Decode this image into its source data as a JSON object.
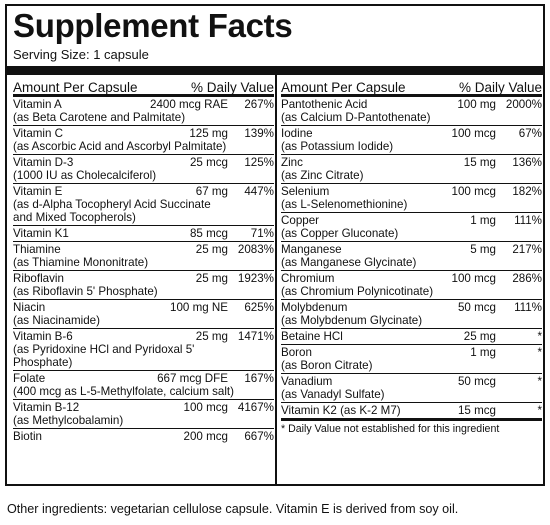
{
  "title": "Supplement Facts",
  "serving_size": "Serving Size: 1 capsule",
  "headers": {
    "amount": "Amount Per Capsule",
    "dv": "% Daily Value"
  },
  "left": [
    {
      "name": "Vitamin A",
      "amount": "2400 mcg RAE",
      "dv": "267%",
      "sub": [
        "(as Beta Carotene and Palmitate)"
      ]
    },
    {
      "name": "Vitamin C",
      "amount": "125 mg",
      "dv": "139%",
      "sub": [
        "(as Ascorbic Acid and Ascorbyl Palmitate)"
      ]
    },
    {
      "name": "Vitamin D-3",
      "amount": "25 mcg",
      "dv": "125%",
      "sub": [
        "(1000 IU as Cholecalciferol)"
      ]
    },
    {
      "name": "Vitamin E",
      "amount": "67 mg",
      "dv": "447%",
      "sub": [
        "(as d-Alpha Tocopheryl Acid Succinate",
        "and Mixed Tocopherols)"
      ]
    },
    {
      "name": "Vitamin K1",
      "amount": "85 mcg",
      "dv": "71%",
      "sub": []
    },
    {
      "name": "Thiamine",
      "amount": "25 mg",
      "dv": "2083%",
      "sub": [
        "(as Thiamine Mononitrate)"
      ]
    },
    {
      "name": "Riboflavin",
      "amount": "25 mg",
      "dv": "1923%",
      "sub": [
        "(as Riboflavin 5' Phosphate)"
      ]
    },
    {
      "name": "Niacin",
      "amount": "100 mg NE",
      "dv": "625%",
      "sub": [
        "(as Niacinamide)"
      ]
    },
    {
      "name": "Vitamin B-6",
      "amount": "25 mg",
      "dv": "1471%",
      "sub": [
        "(as Pyridoxine HCl and Pyridoxal 5'",
        "Phosphate)"
      ]
    },
    {
      "name": "Folate",
      "amount": "667 mcg DFE",
      "dv": "167%",
      "sub": [
        "(400 mcg as L-5-Methylfolate, calcium salt)"
      ]
    },
    {
      "name": "Vitamin B-12",
      "amount": "100 mcg",
      "dv": "4167%",
      "sub": [
        "(as Methylcobalamin)"
      ]
    },
    {
      "name": "Biotin",
      "amount": "200 mcg",
      "dv": "667%",
      "sub": []
    }
  ],
  "right": [
    {
      "name": "Pantothenic Acid",
      "amount": "100 mg",
      "dv": "2000%",
      "sub": [
        "(as Calcium D-Pantothenate)"
      ]
    },
    {
      "name": "Iodine",
      "amount": "100 mcg",
      "dv": "67%",
      "sub": [
        "(as Potassium Iodide)"
      ]
    },
    {
      "name": "Zinc",
      "amount": "15 mg",
      "dv": "136%",
      "sub": [
        "(as Zinc Citrate)"
      ]
    },
    {
      "name": "Selenium",
      "amount": "100 mcg",
      "dv": "182%",
      "sub": [
        "(as L-Selenomethionine)"
      ]
    },
    {
      "name": "Copper",
      "amount": "1 mg",
      "dv": "111%",
      "sub": [
        "(as Copper Gluconate)"
      ]
    },
    {
      "name": "Manganese",
      "amount": "5 mg",
      "dv": "217%",
      "sub": [
        "(as Manganese Glycinate)"
      ]
    },
    {
      "name": "Chromium",
      "amount": "100 mcg",
      "dv": "286%",
      "sub": [
        "(as Chromium Polynicotinate)"
      ]
    },
    {
      "name": "Molybdenum",
      "amount": "50 mcg",
      "dv": "111%",
      "sub": [
        "(as Molybdenum Glycinate)"
      ]
    },
    {
      "name": "Betaine HCl",
      "amount": "25 mg",
      "dv": "*",
      "sub": []
    },
    {
      "name": "Boron",
      "amount": "1 mg",
      "dv": "*",
      "sub": [
        "(as Boron Citrate)"
      ]
    },
    {
      "name": "Vanadium",
      "amount": "50 mcg",
      "dv": "*",
      "sub": [
        "(as Vanadyl Sulfate)"
      ]
    },
    {
      "name": "Vitamin K2 (as K-2 M7)",
      "amount": "15 mcg",
      "dv": "*",
      "sub": []
    }
  ],
  "footnote": "* Daily Value not established for this ingredient",
  "other_ingredients": "Other ingredients: vegetarian cellulose capsule. Vitamin E is derived from soy oil."
}
